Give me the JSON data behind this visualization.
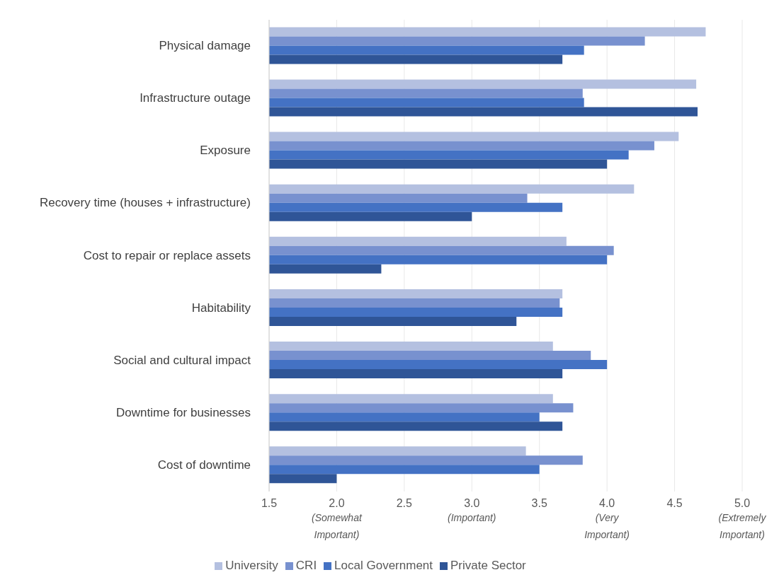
{
  "chart_data": {
    "type": "bar",
    "orientation": "horizontal",
    "categories": [
      "Physical damage",
      "Infrastructure outage",
      "Exposure",
      "Recovery time (houses + infrastructure)",
      "Cost to repair or replace assets",
      "Habitability",
      "Social and cultural impact",
      "Downtime for businesses",
      "Cost of downtime"
    ],
    "series": [
      {
        "name": "University",
        "color": "#b4c0e0",
        "values": [
          4.73,
          4.66,
          4.53,
          4.2,
          3.7,
          3.67,
          3.6,
          3.6,
          3.4
        ]
      },
      {
        "name": "CRI",
        "color": "#7891cf",
        "values": [
          4.28,
          3.82,
          4.35,
          3.41,
          4.05,
          3.65,
          3.88,
          3.75,
          3.82
        ]
      },
      {
        "name": "Local Government",
        "color": "#4472c4",
        "values": [
          3.83,
          3.83,
          4.16,
          3.67,
          4.0,
          3.67,
          4.0,
          3.5,
          3.5
        ]
      },
      {
        "name": "Private Sector",
        "color": "#2f5597",
        "values": [
          3.67,
          4.67,
          4.0,
          3.0,
          2.33,
          3.33,
          3.67,
          3.67,
          2.0
        ]
      }
    ],
    "xlim": [
      1.5,
      5.0
    ],
    "xticks": [
      {
        "value": 1.5,
        "label": "1.5"
      },
      {
        "value": 2.0,
        "label": "2.0 (Somewhat Important)"
      },
      {
        "value": 2.5,
        "label": "2.5"
      },
      {
        "value": 3.0,
        "label": "3.0 (Important)"
      },
      {
        "value": 3.5,
        "label": "3.5"
      },
      {
        "value": 4.0,
        "label": "4.0 (Very Important)"
      },
      {
        "value": 4.5,
        "label": "4.5"
      },
      {
        "value": 5.0,
        "label": "5.0 (Extremely Important)"
      }
    ],
    "grid": "x",
    "legend": "bottom"
  }
}
